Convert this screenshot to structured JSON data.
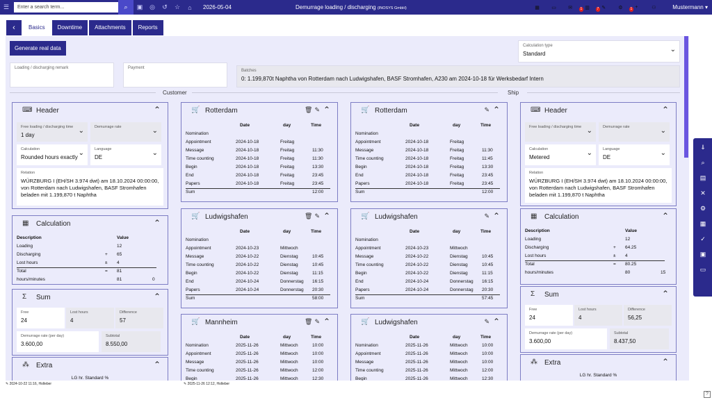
{
  "topbar": {
    "search_placeholder": "Enter a search term...",
    "date": "2026-05-04",
    "title": "Demurrage loading / discharging",
    "company": "(INOSYS GmbH)",
    "badges": [
      "1",
      "7",
      "1"
    ],
    "user": "Mustermann"
  },
  "tabs": [
    "Basics",
    "Downtime",
    "Attachments",
    "Reports"
  ],
  "generate_button": "Generate real data",
  "calc_type": {
    "label": "Calculation type",
    "value": "Standard"
  },
  "remark": {
    "label": "Loading / discharging remark",
    "value": ""
  },
  "payment": {
    "label": "Payment",
    "value": ""
  },
  "batches": {
    "label": "Batches",
    "value": "0: 1.199,870t Naphtha von Rotterdam nach Ludwigshafen, BASF Stromhafen, A230 am 2024-10-18 für Werksbedarf Intern"
  },
  "sections": {
    "customer": "Customer",
    "ship": "Ship"
  },
  "customer": {
    "header": {
      "title": "Header",
      "free_time": {
        "label": "Free loading / discharging time",
        "value": "1 day"
      },
      "demurrage_rate": {
        "label": "Demurrage rate",
        "value": ""
      },
      "calculation": {
        "label": "Calculation",
        "value": "Rounded hours exactly"
      },
      "language": {
        "label": "Language",
        "value": "DE"
      },
      "relation": {
        "label": "Relation",
        "value": "WÜRZBURG I (EH/SH 3.974 dwt) am 18.10.2024 00:00:00, von Rotterdam nach Ludwigshafen, BASF Stromhafen beladen mit 1.199,870 t Naphtha"
      }
    },
    "calculation": {
      "title": "Calculation",
      "col_desc": "Description",
      "col_val": "Value",
      "rows": [
        {
          "d": "Loading",
          "op": "",
          "v": "12"
        },
        {
          "d": "Discharging",
          "op": "+",
          "v": "65"
        },
        {
          "d": "Lost hours",
          "op": "±",
          "v": "4"
        },
        {
          "d": "Total",
          "op": "=",
          "v": "81"
        },
        {
          "d": "hours/minutes",
          "op": "",
          "v": "81",
          "v2": "0"
        }
      ]
    },
    "sum": {
      "title": "Sum",
      "free": {
        "label": "Free",
        "value": "24"
      },
      "lost": {
        "label": "Lost hours",
        "value": "4"
      },
      "diff": {
        "label": "Difference",
        "value": "57"
      },
      "rate": {
        "label": "Demurrage rate (per day)",
        "value": "3.600,00"
      },
      "subtotal": {
        "label": "Subtotal",
        "value": "8.550,00"
      }
    },
    "extra": {
      "title": "Extra",
      "col": "LG hr. Standard %"
    }
  },
  "ship": {
    "header": {
      "title": "Header",
      "free_time": {
        "label": "Free loading / discharging time",
        "value": ""
      },
      "demurrage_rate": {
        "label": "Demurrage rate",
        "value": ""
      },
      "calculation": {
        "label": "Calculation",
        "value": "Metered"
      },
      "language": {
        "label": "Language",
        "value": "DE"
      },
      "relation": {
        "label": "Relation",
        "value": "WÜRZBURG I (EH/SH 3.974 dwt) am 18.10.2024 00:00:00, von Rotterdam nach Ludwigshafen, BASF Stromhafen beladen mit 1.199,870 t Naphtha"
      }
    },
    "calculation": {
      "title": "Calculation",
      "col_desc": "Description",
      "col_val": "Value",
      "rows": [
        {
          "d": "Loading",
          "op": "",
          "v": "12"
        },
        {
          "d": "Discharging",
          "op": "+",
          "v": "64.25"
        },
        {
          "d": "Lost hours",
          "op": "±",
          "v": "4"
        },
        {
          "d": "Total",
          "op": "=",
          "v": "80.25"
        },
        {
          "d": "hours/minutes",
          "op": "",
          "v": "80",
          "v2": "15"
        }
      ]
    },
    "sum": {
      "title": "Sum",
      "free": {
        "label": "Free",
        "value": "24"
      },
      "lost": {
        "label": "Lost hours",
        "value": "4"
      },
      "diff": {
        "label": "Difference",
        "value": "56,25"
      },
      "rate": {
        "label": "Demurrage rate (per day)",
        "value": "3.600,00"
      },
      "subtotal": {
        "label": "Subtotal",
        "value": "8.437,50"
      }
    },
    "extra": {
      "title": "Extra",
      "col": "LG hr. Standard %"
    }
  },
  "cols": {
    "date": "Date",
    "day": "day",
    "time": "Time"
  },
  "ports_customer": [
    {
      "name": "Rotterdam",
      "rows": [
        [
          "Nomination",
          "",
          "",
          ""
        ],
        [
          "Appointment",
          "2024-10-18",
          "Freitag",
          ""
        ],
        [
          "Message",
          "2024-10-18",
          "Freitag",
          "11:30"
        ],
        [
          "Time counting",
          "2024-10-18",
          "Freitag",
          "11:30"
        ],
        [
          "Begin",
          "2024-10-18",
          "Freitag",
          "13:30"
        ],
        [
          "End",
          "2024-10-18",
          "Freitag",
          "23:45"
        ],
        [
          "Papers",
          "2024-10-18",
          "Freitag",
          "23:45"
        ]
      ],
      "sum": "12:00"
    },
    {
      "name": "Ludwigshafen",
      "rows": [
        [
          "Nomination",
          "",
          "",
          ""
        ],
        [
          "Appointment",
          "2024-10-23",
          "Mittwoch",
          ""
        ],
        [
          "Message",
          "2024-10-22",
          "Dienstag",
          "10:45"
        ],
        [
          "Time counting",
          "2024-10-22",
          "Dienstag",
          "10:45"
        ],
        [
          "Begin",
          "2024-10-22",
          "Dienstag",
          "11:15"
        ],
        [
          "End",
          "2024-10-24",
          "Donnerstag",
          "16:15"
        ],
        [
          "Papers",
          "2024-10-24",
          "Donnerstag",
          "20:30"
        ]
      ],
      "sum": "58:00"
    },
    {
      "name": "Mannheim",
      "rows": [
        [
          "Nomination",
          "2025-11-26",
          "Mittwoch",
          "10:00"
        ],
        [
          "Appointment",
          "2025-11-26",
          "Mittwoch",
          "10:00"
        ],
        [
          "Message",
          "2025-11-26",
          "Mittwoch",
          "10:00"
        ],
        [
          "Time counting",
          "2025-11-26",
          "Mittwoch",
          "12:00"
        ],
        [
          "Begin",
          "2025-11-26",
          "Mittwoch",
          "12:30"
        ]
      ],
      "sum": ""
    }
  ],
  "ports_ship": [
    {
      "name": "Rotterdam",
      "rows": [
        [
          "Nomination",
          "",
          "",
          ""
        ],
        [
          "Appointment",
          "2024-10-18",
          "Freitag",
          ""
        ],
        [
          "Message",
          "2024-10-18",
          "Freitag",
          "11:30"
        ],
        [
          "Time counting",
          "2024-10-18",
          "Freitag",
          "11:45"
        ],
        [
          "Begin",
          "2024-10-18",
          "Freitag",
          "13:30"
        ],
        [
          "End",
          "2024-10-18",
          "Freitag",
          "23:45"
        ],
        [
          "Papers",
          "2024-10-18",
          "Freitag",
          "23:45"
        ]
      ],
      "sum": "12:00"
    },
    {
      "name": "Ludwigshafen",
      "rows": [
        [
          "Nomination",
          "",
          "",
          ""
        ],
        [
          "Appointment",
          "2024-10-23",
          "Mittwoch",
          ""
        ],
        [
          "Message",
          "2024-10-22",
          "Dienstag",
          "10:45"
        ],
        [
          "Time counting",
          "2024-10-22",
          "Dienstag",
          "10:45"
        ],
        [
          "Begin",
          "2024-10-22",
          "Dienstag",
          "11:15"
        ],
        [
          "End",
          "2024-10-24",
          "Donnerstag",
          "16:15"
        ],
        [
          "Papers",
          "2024-10-24",
          "Donnerstag",
          "20:30"
        ]
      ],
      "sum": "57:45"
    },
    {
      "name": "Ludwigshafen",
      "rows": [
        [
          "Nomination",
          "2025-11-26",
          "Mittwoch",
          "10:00"
        ],
        [
          "Appointment",
          "2025-11-26",
          "Mittwoch",
          "10:00"
        ],
        [
          "Message",
          "2025-11-26",
          "Mittwoch",
          "10:00"
        ],
        [
          "Time counting",
          "2025-11-26",
          "Mittwoch",
          "12:00"
        ],
        [
          "Begin",
          "2025-11-26",
          "Mittwoch",
          "12:30"
        ]
      ],
      "sum": ""
    }
  ],
  "sum_label": "Sum",
  "footer": {
    "created": "2024-10-22 11:16, Holleber",
    "edited": "2025-11-26 12:12, Holleber"
  },
  "help": "?"
}
